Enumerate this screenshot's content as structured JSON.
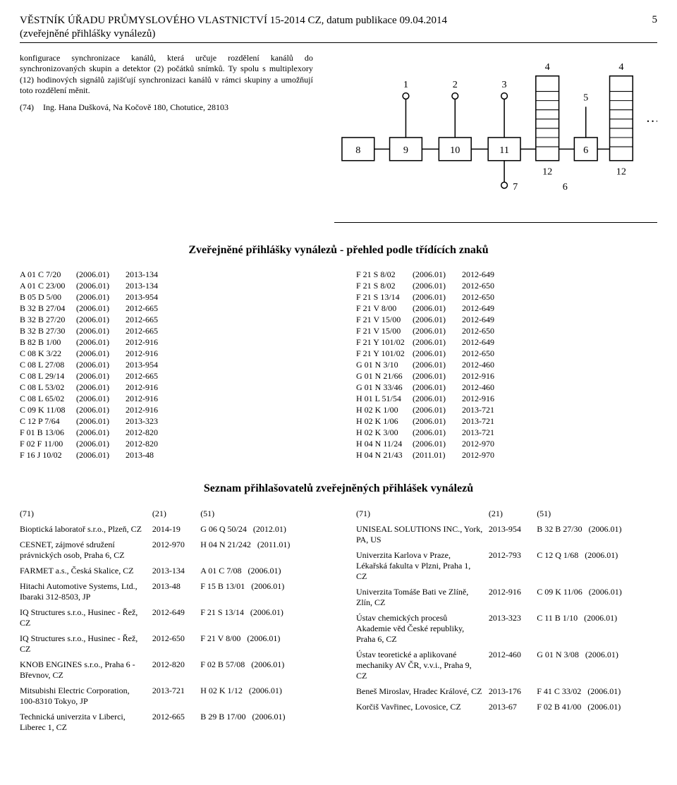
{
  "header": {
    "line1": "VĚSTNÍK ÚŘADU PRŮMYSLOVÉHO VLASTNICTVÍ 15-2014 CZ, datum publikace 09.04.2014",
    "line2": "(zveřejněné přihlášky vynálezů)",
    "page": "5"
  },
  "abstract": {
    "para1": "konfigurace synchronizace kanálů, která určuje rozdělení kanálů do synchronizovaných skupin a detektor (2) počátků snímků. Ty spolu s multiplexory (12) hodinových signálů zajišťují synchronizaci kanálů v rámci skupiny a umožňují toto rozdělení měnit.",
    "label74": "(74)",
    "author": "Ing. Hana Dušková, Na Kočově 180, Chotutice, 28103"
  },
  "section1_title": "Zveřejněné přihlášky vynálezů - přehled podle třídících znaků",
  "classif_left": [
    [
      "A 01 C 7/20",
      "(2006.01)",
      "2013-134"
    ],
    [
      "A 01 C 23/00",
      "(2006.01)",
      "2013-134"
    ],
    [
      "B 05 D 5/00",
      "(2006.01)",
      "2013-954"
    ],
    [
      "B 32 B 27/04",
      "(2006.01)",
      "2012-665"
    ],
    [
      "B 32 B 27/20",
      "(2006.01)",
      "2012-665"
    ],
    [
      "B 32 B 27/30",
      "(2006.01)",
      "2012-665"
    ],
    [
      "B 82 B 1/00",
      "(2006.01)",
      "2012-916"
    ],
    [
      "C 08 K 3/22",
      "(2006.01)",
      "2012-916"
    ],
    [
      "C 08 L 27/08",
      "(2006.01)",
      "2013-954"
    ],
    [
      "C 08 L 29/14",
      "(2006.01)",
      "2012-665"
    ],
    [
      "C 08 L 53/02",
      "(2006.01)",
      "2012-916"
    ],
    [
      "C 08 L 65/02",
      "(2006.01)",
      "2012-916"
    ],
    [
      "C 09 K 11/08",
      "(2006.01)",
      "2012-916"
    ],
    [
      "C 12 P 7/64",
      "(2006.01)",
      "2013-323"
    ],
    [
      "F 01 B 13/06",
      "(2006.01)",
      "2012-820"
    ],
    [
      "F 02 F 11/00",
      "(2006.01)",
      "2012-820"
    ],
    [
      "F 16 J 10/02",
      "(2006.01)",
      "2013-48"
    ]
  ],
  "classif_right": [
    [
      "F 21 S 8/02",
      "(2006.01)",
      "2012-649"
    ],
    [
      "F 21 S 8/02",
      "(2006.01)",
      "2012-650"
    ],
    [
      "F 21 S 13/14",
      "(2006.01)",
      "2012-650"
    ],
    [
      "F 21 V 8/00",
      "(2006.01)",
      "2012-649"
    ],
    [
      "F 21 V 15/00",
      "(2006.01)",
      "2012-649"
    ],
    [
      "F 21 V 15/00",
      "(2006.01)",
      "2012-650"
    ],
    [
      "F 21 Y 101/02",
      "(2006.01)",
      "2012-649"
    ],
    [
      "F 21 Y 101/02",
      "(2006.01)",
      "2012-650"
    ],
    [
      "G 01 N 3/10",
      "(2006.01)",
      "2012-460"
    ],
    [
      "G 01 N 21/66",
      "(2006.01)",
      "2012-916"
    ],
    [
      "G 01 N 33/46",
      "(2006.01)",
      "2012-460"
    ],
    [
      "H 01 L 51/54",
      "(2006.01)",
      "2012-916"
    ],
    [
      "H 02 K 1/00",
      "(2006.01)",
      "2013-721"
    ],
    [
      "H 02 K 1/06",
      "(2006.01)",
      "2013-721"
    ],
    [
      "H 02 K 3/00",
      "(2006.01)",
      "2013-721"
    ],
    [
      "H 04 N 11/24",
      "(2006.01)",
      "2012-970"
    ],
    [
      "H 04 N 21/43",
      "(2011.01)",
      "2012-970"
    ]
  ],
  "section2_title": "Seznam přihlašovatelů zveřejněných přihlášek vynálezů",
  "app_headers": {
    "c1": "(71)",
    "c2": "(21)",
    "c3": "(51)"
  },
  "applicants_left": [
    [
      "Bioptická laboratoř s.r.o., Plzeň, CZ",
      "2014-19",
      "G 06 Q 50/24",
      "(2012.01)"
    ],
    [
      "CESNET, zájmové sdružení právnických osob, Praha 6, CZ",
      "2012-970",
      "H 04 N 21/242",
      "(2011.01)"
    ],
    [
      "FARMET a.s., Česká Skalice, CZ",
      "2013-134",
      "A 01 C 7/08",
      "(2006.01)"
    ],
    [
      "Hitachi Automotive Systems, Ltd., Ibaraki 312-8503, JP",
      "2013-48",
      "F 15 B 13/01",
      "(2006.01)"
    ],
    [
      "IQ Structures s.r.o., Husinec - Řež, CZ",
      "2012-649",
      "F 21 S 13/14",
      "(2006.01)"
    ],
    [
      "IQ Structures s.r.o., Husinec - Řež, CZ",
      "2012-650",
      "F 21 V 8/00",
      "(2006.01)"
    ],
    [
      "KNOB ENGINES s.r.o., Praha 6 - Břevnov, CZ",
      "2012-820",
      "F 02 B 57/08",
      "(2006.01)"
    ],
    [
      "Mitsubishi Electric Corporation, 100-8310 Tokyo, JP",
      "2013-721",
      "H 02 K 1/12",
      "(2006.01)"
    ],
    [
      "Technická univerzita v Liberci, Liberec 1, CZ",
      "2012-665",
      "B 29 B 17/00",
      "(2006.01)"
    ]
  ],
  "applicants_right": [
    [
      "UNISEAL SOLUTIONS INC., York, PA, US",
      "2013-954",
      "B 32 B 27/30",
      "(2006.01)"
    ],
    [
      "Univerzita Karlova v Praze, Lékařská fakulta v Plzni, Praha 1, CZ",
      "2012-793",
      "C 12 Q 1/68",
      "(2006.01)"
    ],
    [
      "Univerzita Tomáše Bati ve Zlíně, Zlín, CZ",
      "2012-916",
      "C 09 K 11/06",
      "(2006.01)"
    ],
    [
      "Ústav chemických procesů Akademie věd České republiky, Praha 6, CZ",
      "2013-323",
      "C 11 B 1/10",
      "(2006.01)"
    ],
    [
      "Ústav teoretické a aplikované mechaniky AV ČR, v.v.i., Praha 9, CZ",
      "2012-460",
      "G 01 N 3/08",
      "(2006.01)"
    ],
    [
      "Beneš Miroslav, Hradec Králové, CZ",
      "2013-176",
      "F 41 C 33/02",
      "(2006.01)"
    ],
    [
      "Korčiš Vavřinec, Lovosice, CZ",
      "2013-67",
      "F 02 B 41/00",
      "(2006.01)"
    ]
  ],
  "figure": {
    "labels": [
      "1",
      "2",
      "3",
      "4",
      "4",
      "5",
      "6",
      "6",
      "7",
      "8",
      "9",
      "10",
      "11",
      "12",
      "12"
    ],
    "stroke": "#000000",
    "fill": "#ffffff"
  }
}
